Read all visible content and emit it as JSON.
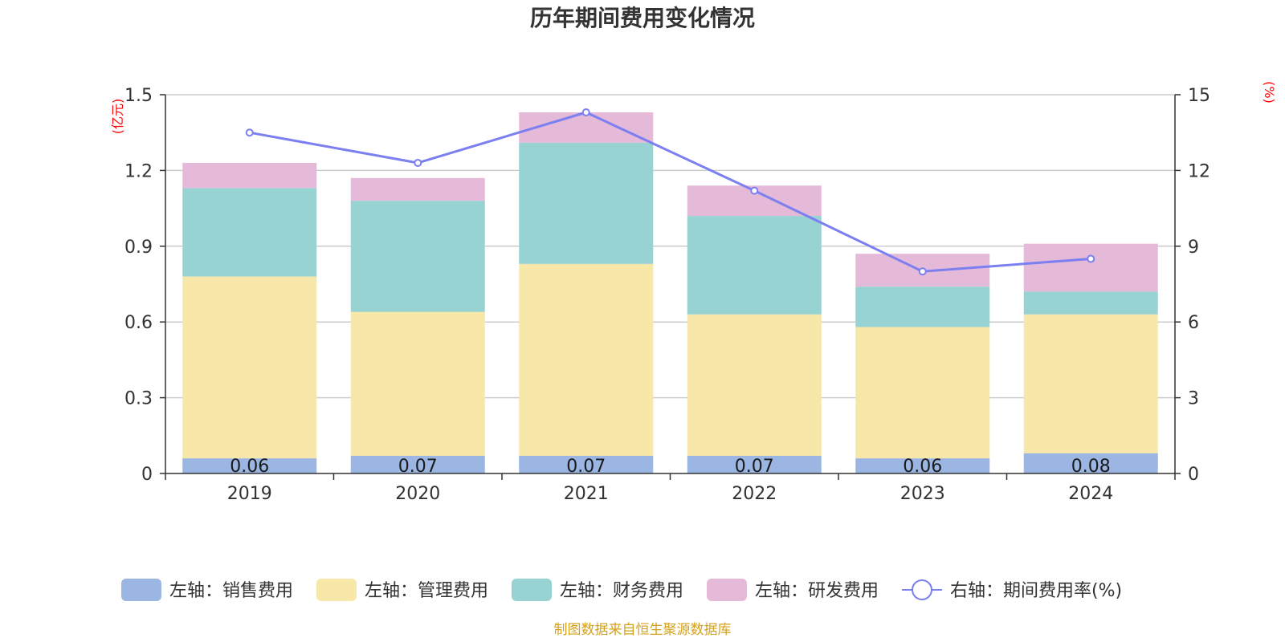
{
  "chart_data": {
    "type": "bar",
    "stacked": true,
    "title": "历年期间费用变化情况",
    "categories": [
      "2019",
      "2020",
      "2021",
      "2022",
      "2023",
      "2024"
    ],
    "y_left": {
      "unit": "(亿元)",
      "ylim": [
        0,
        1.5
      ],
      "ticks": [
        "0",
        "0.3",
        "0.6",
        "0.9",
        "1.2",
        "1.5"
      ]
    },
    "y_right": {
      "unit": "(%)",
      "ylim": [
        0,
        15
      ],
      "ticks": [
        "0",
        "3",
        "6",
        "9",
        "12",
        "15"
      ]
    },
    "series": [
      {
        "name": "左轴：销售费用",
        "color": "#9bb6e2",
        "values": [
          0.06,
          0.07,
          0.07,
          0.07,
          0.06,
          0.08
        ],
        "data_labels": [
          "0.06",
          "0.07",
          "0.07",
          "0.07",
          "0.06",
          "0.08"
        ]
      },
      {
        "name": "左轴：管理费用",
        "color": "#f7e7a8",
        "values": [
          0.72,
          0.57,
          0.76,
          0.56,
          0.52,
          0.55
        ]
      },
      {
        "name": "左轴：财务费用",
        "color": "#98d3d4",
        "values": [
          0.35,
          0.44,
          0.48,
          0.39,
          0.16,
          0.09
        ]
      },
      {
        "name": "左轴：研发费用",
        "color": "#e5b9d8",
        "values": [
          0.1,
          0.09,
          0.12,
          0.12,
          0.13,
          0.19
        ]
      }
    ],
    "line": {
      "name": "右轴：期间费用率(%)",
      "color": "#7b7ff0",
      "axis": "right",
      "values": [
        13.5,
        12.3,
        14.3,
        11.2,
        8.0,
        8.5
      ]
    },
    "grid": true,
    "legend_position": "bottom"
  },
  "source": "制图数据来自恒生聚源数据库"
}
